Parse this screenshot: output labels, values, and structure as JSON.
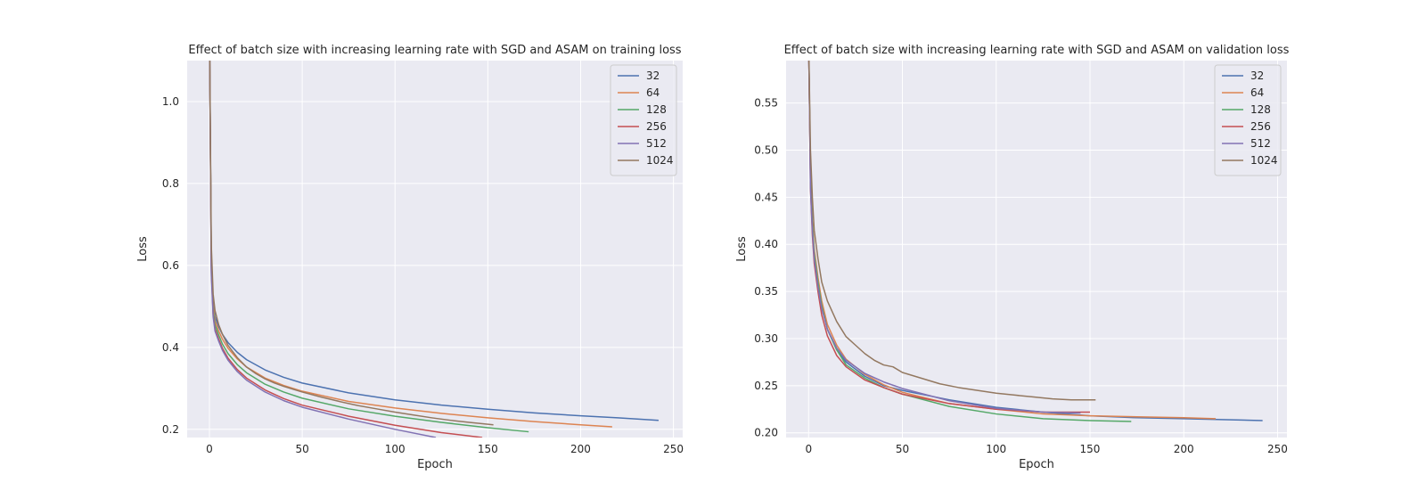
{
  "chart_data": [
    {
      "type": "line",
      "title": "Effect of batch size with increasing learning rate with SGD and ASAM on training loss",
      "xlabel": "Epoch",
      "ylabel": "Loss",
      "xlim": [
        -12,
        255
      ],
      "ylim": [
        0.18,
        1.1
      ],
      "xticks": [
        0,
        50,
        100,
        150,
        200,
        250
      ],
      "yticks": [
        0.2,
        0.4,
        0.6,
        0.8,
        1.0
      ],
      "ytick_labels": [
        "0.2",
        "0.4",
        "0.6",
        "0.8",
        "1.0"
      ],
      "grid": true,
      "legend": "top-right",
      "series": [
        {
          "name": "32",
          "color": "#4c72b0",
          "points": [
            [
              0,
              1.2
            ],
            [
              1,
              0.62
            ],
            [
              2,
              0.51
            ],
            [
              3,
              0.475
            ],
            [
              5,
              0.45
            ],
            [
              7,
              0.432
            ],
            [
              10,
              0.412
            ],
            [
              15,
              0.388
            ],
            [
              20,
              0.37
            ],
            [
              30,
              0.345
            ],
            [
              40,
              0.327
            ],
            [
              50,
              0.313
            ],
            [
              75,
              0.289
            ],
            [
              100,
              0.272
            ],
            [
              125,
              0.259
            ],
            [
              150,
              0.249
            ],
            [
              175,
              0.24
            ],
            [
              200,
              0.233
            ],
            [
              220,
              0.228
            ],
            [
              242,
              0.222
            ]
          ]
        },
        {
          "name": "64",
          "color": "#dd8452",
          "points": [
            [
              0,
              1.2
            ],
            [
              1,
              0.61
            ],
            [
              2,
              0.5
            ],
            [
              3,
              0.465
            ],
            [
              5,
              0.44
            ],
            [
              7,
              0.42
            ],
            [
              10,
              0.398
            ],
            [
              15,
              0.372
            ],
            [
              20,
              0.352
            ],
            [
              30,
              0.325
            ],
            [
              40,
              0.307
            ],
            [
              50,
              0.293
            ],
            [
              75,
              0.268
            ],
            [
              100,
              0.252
            ],
            [
              125,
              0.239
            ],
            [
              150,
              0.228
            ],
            [
              175,
              0.219
            ],
            [
              200,
              0.211
            ],
            [
              217,
              0.206
            ]
          ]
        },
        {
          "name": "128",
          "color": "#55a868",
          "points": [
            [
              0,
              1.2
            ],
            [
              1,
              0.6
            ],
            [
              2,
              0.49
            ],
            [
              3,
              0.455
            ],
            [
              5,
              0.43
            ],
            [
              7,
              0.408
            ],
            [
              10,
              0.385
            ],
            [
              15,
              0.358
            ],
            [
              20,
              0.338
            ],
            [
              30,
              0.31
            ],
            [
              40,
              0.291
            ],
            [
              50,
              0.276
            ],
            [
              75,
              0.25
            ],
            [
              100,
              0.232
            ],
            [
              125,
              0.217
            ],
            [
              150,
              0.204
            ],
            [
              172,
              0.194
            ]
          ]
        },
        {
          "name": "256",
          "color": "#c44e52",
          "points": [
            [
              0,
              1.2
            ],
            [
              1,
              0.59
            ],
            [
              2,
              0.48
            ],
            [
              3,
              0.445
            ],
            [
              5,
              0.42
            ],
            [
              7,
              0.398
            ],
            [
              10,
              0.374
            ],
            [
              15,
              0.346
            ],
            [
              20,
              0.325
            ],
            [
              30,
              0.296
            ],
            [
              40,
              0.275
            ],
            [
              50,
              0.259
            ],
            [
              75,
              0.232
            ],
            [
              100,
              0.21
            ],
            [
              125,
              0.192
            ],
            [
              147,
              0.18
            ]
          ]
        },
        {
          "name": "512",
          "color": "#8172b3",
          "points": [
            [
              0,
              1.2
            ],
            [
              1,
              0.58
            ],
            [
              2,
              0.475
            ],
            [
              3,
              0.44
            ],
            [
              5,
              0.415
            ],
            [
              7,
              0.393
            ],
            [
              10,
              0.369
            ],
            [
              15,
              0.341
            ],
            [
              20,
              0.32
            ],
            [
              30,
              0.291
            ],
            [
              40,
              0.27
            ],
            [
              50,
              0.254
            ],
            [
              75,
              0.225
            ],
            [
              100,
              0.2
            ],
            [
              122,
              0.18
            ]
          ]
        },
        {
          "name": "1024",
          "color": "#937860",
          "points": [
            [
              0,
              1.2
            ],
            [
              1,
              0.65
            ],
            [
              2,
              0.53
            ],
            [
              3,
              0.49
            ],
            [
              5,
              0.455
            ],
            [
              7,
              0.432
            ],
            [
              10,
              0.405
            ],
            [
              15,
              0.375
            ],
            [
              20,
              0.352
            ],
            [
              25,
              0.336
            ],
            [
              30,
              0.323
            ],
            [
              35,
              0.313
            ],
            [
              40,
              0.305
            ],
            [
              45,
              0.298
            ],
            [
              50,
              0.291
            ],
            [
              60,
              0.279
            ],
            [
              70,
              0.268
            ],
            [
              80,
              0.258
            ],
            [
              90,
              0.25
            ],
            [
              100,
              0.242
            ],
            [
              110,
              0.235
            ],
            [
              120,
              0.228
            ],
            [
              130,
              0.222
            ],
            [
              140,
              0.217
            ],
            [
              153,
              0.211
            ]
          ]
        }
      ]
    },
    {
      "type": "line",
      "title": "Effect of batch size with increasing learning rate with SGD and ASAM on validation loss",
      "xlabel": "Epoch",
      "ylabel": "Loss",
      "xlim": [
        -12,
        255
      ],
      "ylim": [
        0.195,
        0.595
      ],
      "xticks": [
        0,
        50,
        100,
        150,
        200,
        250
      ],
      "yticks": [
        0.2,
        0.25,
        0.3,
        0.35,
        0.4,
        0.45,
        0.5,
        0.55
      ],
      "ytick_labels": [
        "0.20",
        "0.25",
        "0.30",
        "0.35",
        "0.40",
        "0.45",
        "0.50",
        "0.55"
      ],
      "grid": true,
      "legend": "top-right",
      "series": [
        {
          "name": "32",
          "color": "#4c72b0",
          "points": [
            [
              0,
              0.62
            ],
            [
              1,
              0.47
            ],
            [
              2,
              0.42
            ],
            [
              3,
              0.39
            ],
            [
              5,
              0.36
            ],
            [
              7,
              0.335
            ],
            [
              10,
              0.31
            ],
            [
              15,
              0.288
            ],
            [
              20,
              0.275
            ],
            [
              30,
              0.26
            ],
            [
              40,
              0.25
            ],
            [
              50,
              0.245
            ],
            [
              75,
              0.235
            ],
            [
              100,
              0.227
            ],
            [
              125,
              0.222
            ],
            [
              150,
              0.218
            ],
            [
              175,
              0.216
            ],
            [
              200,
              0.215
            ],
            [
              220,
              0.214
            ],
            [
              242,
              0.213
            ]
          ]
        },
        {
          "name": "64",
          "color": "#dd8452",
          "points": [
            [
              0,
              0.62
            ],
            [
              1,
              0.47
            ],
            [
              2,
              0.425
            ],
            [
              3,
              0.395
            ],
            [
              5,
              0.365
            ],
            [
              7,
              0.34
            ],
            [
              10,
              0.315
            ],
            [
              15,
              0.293
            ],
            [
              20,
              0.278
            ],
            [
              30,
              0.262
            ],
            [
              40,
              0.251
            ],
            [
              50,
              0.243
            ],
            [
              75,
              0.231
            ],
            [
              100,
              0.225
            ],
            [
              125,
              0.22
            ],
            [
              150,
              0.218
            ],
            [
              175,
              0.217
            ],
            [
              200,
              0.216
            ],
            [
              217,
              0.215
            ]
          ]
        },
        {
          "name": "128",
          "color": "#55a868",
          "points": [
            [
              0,
              0.62
            ],
            [
              1,
              0.47
            ],
            [
              2,
              0.42
            ],
            [
              3,
              0.39
            ],
            [
              5,
              0.36
            ],
            [
              7,
              0.335
            ],
            [
              10,
              0.31
            ],
            [
              15,
              0.288
            ],
            [
              20,
              0.272
            ],
            [
              30,
              0.258
            ],
            [
              40,
              0.248
            ],
            [
              50,
              0.241
            ],
            [
              75,
              0.228
            ],
            [
              100,
              0.22
            ],
            [
              125,
              0.215
            ],
            [
              150,
              0.213
            ],
            [
              172,
              0.212
            ]
          ]
        },
        {
          "name": "256",
          "color": "#c44e52",
          "points": [
            [
              0,
              0.62
            ],
            [
              1,
              0.46
            ],
            [
              2,
              0.41
            ],
            [
              3,
              0.38
            ],
            [
              5,
              0.35
            ],
            [
              7,
              0.325
            ],
            [
              10,
              0.303
            ],
            [
              15,
              0.282
            ],
            [
              20,
              0.27
            ],
            [
              30,
              0.256
            ],
            [
              40,
              0.248
            ],
            [
              50,
              0.241
            ],
            [
              75,
              0.231
            ],
            [
              100,
              0.225
            ],
            [
              125,
              0.222
            ],
            [
              150,
              0.222
            ]
          ]
        },
        {
          "name": "512",
          "color": "#8172b3",
          "points": [
            [
              0,
              0.62
            ],
            [
              1,
              0.46
            ],
            [
              2,
              0.415
            ],
            [
              3,
              0.385
            ],
            [
              5,
              0.355
            ],
            [
              7,
              0.332
            ],
            [
              10,
              0.31
            ],
            [
              15,
              0.29
            ],
            [
              20,
              0.277
            ],
            [
              30,
              0.263
            ],
            [
              40,
              0.254
            ],
            [
              50,
              0.247
            ],
            [
              75,
              0.234
            ],
            [
              100,
              0.226
            ],
            [
              125,
              0.222
            ],
            [
              145,
              0.221
            ]
          ]
        },
        {
          "name": "1024",
          "color": "#937860",
          "points": [
            [
              0,
              0.62
            ],
            [
              1,
              0.5
            ],
            [
              2,
              0.45
            ],
            [
              3,
              0.415
            ],
            [
              5,
              0.385
            ],
            [
              7,
              0.36
            ],
            [
              10,
              0.34
            ],
            [
              15,
              0.318
            ],
            [
              20,
              0.302
            ],
            [
              25,
              0.293
            ],
            [
              30,
              0.284
            ],
            [
              35,
              0.277
            ],
            [
              40,
              0.272
            ],
            [
              45,
              0.27
            ],
            [
              50,
              0.264
            ],
            [
              60,
              0.258
            ],
            [
              70,
              0.252
            ],
            [
              80,
              0.248
            ],
            [
              90,
              0.245
            ],
            [
              100,
              0.242
            ],
            [
              110,
              0.24
            ],
            [
              120,
              0.238
            ],
            [
              130,
              0.236
            ],
            [
              140,
              0.235
            ],
            [
              153,
              0.235
            ]
          ]
        }
      ]
    }
  ]
}
